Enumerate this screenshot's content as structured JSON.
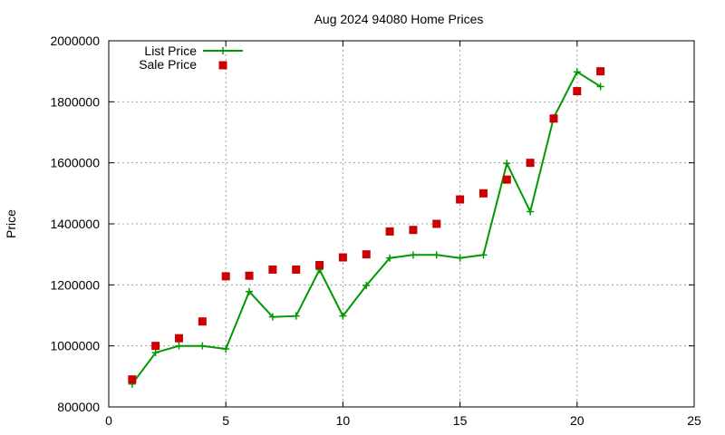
{
  "chart_data": {
    "type": "line",
    "title": "Aug 2024 94080 Home Prices",
    "xlabel": "",
    "ylabel": "Price",
    "xlim": [
      0,
      25
    ],
    "ylim": [
      800000,
      2000000
    ],
    "xticks": [
      0,
      5,
      10,
      15,
      20,
      25
    ],
    "yticks": [
      800000,
      1000000,
      1200000,
      1400000,
      1600000,
      1800000,
      2000000
    ],
    "grid": true,
    "legend_position": "top-left",
    "series": [
      {
        "name": "List Price",
        "style": "line-with-plus-markers",
        "color": "#009900",
        "x": [
          1,
          2,
          3,
          4,
          5,
          6,
          7,
          8,
          9,
          10,
          11,
          12,
          13,
          14,
          15,
          16,
          17,
          18,
          19,
          20,
          21
        ],
        "values": [
          875000,
          978000,
          1000000,
          1000000,
          990000,
          1178000,
          1095000,
          1098000,
          1250000,
          1098000,
          1198000,
          1288000,
          1298000,
          1298000,
          1288000,
          1298000,
          1598000,
          1440000,
          1748000,
          1898000,
          1850000
        ]
      },
      {
        "name": "Sale Price",
        "style": "square-markers",
        "color": "#cc0000",
        "x": [
          1,
          2,
          3,
          4,
          5,
          6,
          7,
          8,
          9,
          10,
          11,
          12,
          13,
          14,
          15,
          16,
          17,
          18,
          19,
          20,
          21
        ],
        "values": [
          890000,
          1000000,
          1025000,
          1080000,
          1228000,
          1230000,
          1250000,
          1250000,
          1265000,
          1290000,
          1300000,
          1375000,
          1380000,
          1400000,
          1480000,
          1500000,
          1545000,
          1600000,
          1745000,
          1835000,
          1900000
        ]
      }
    ]
  }
}
